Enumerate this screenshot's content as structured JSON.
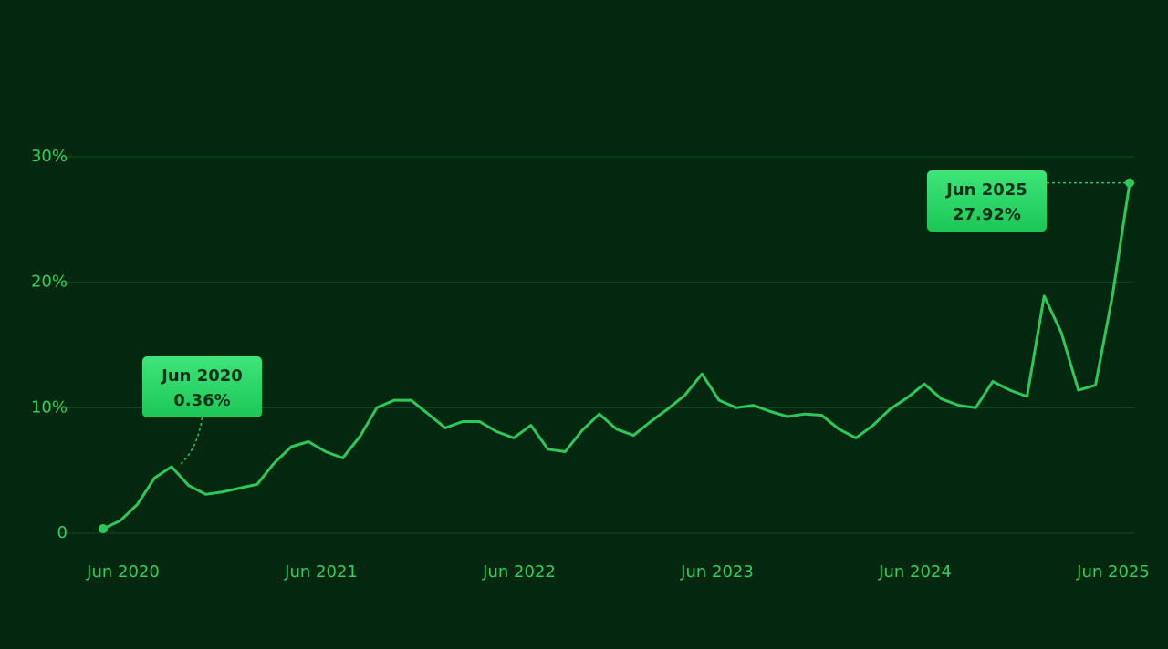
{
  "chart_data": {
    "type": "line",
    "categories": [
      "Jun 2020",
      null,
      null,
      null,
      null,
      null,
      null,
      null,
      null,
      null,
      null,
      null,
      "Jun 2021",
      null,
      null,
      null,
      null,
      null,
      null,
      null,
      null,
      null,
      null,
      null,
      "Jun 2022",
      null,
      null,
      null,
      null,
      null,
      null,
      null,
      null,
      null,
      null,
      null,
      "Jun 2023",
      null,
      null,
      null,
      null,
      null,
      null,
      null,
      null,
      null,
      null,
      null,
      "Jun 2024",
      null,
      null,
      null,
      null,
      null,
      null,
      null,
      null,
      null,
      null,
      null,
      "Jun 2025"
    ],
    "values": [
      0.36,
      1.0,
      2.3,
      4.4,
      5.3,
      3.8,
      3.1,
      3.3,
      3.6,
      3.9,
      5.6,
      6.9,
      7.3,
      6.5,
      6.0,
      7.7,
      10.0,
      10.6,
      10.6,
      9.5,
      8.4,
      8.9,
      8.9,
      8.1,
      7.6,
      8.6,
      6.7,
      6.5,
      8.2,
      9.5,
      8.3,
      7.8,
      8.9,
      9.9,
      11.0,
      12.7,
      10.6,
      10.0,
      10.2,
      9.7,
      9.3,
      9.5,
      9.4,
      8.3,
      7.6,
      8.6,
      9.9,
      10.8,
      11.9,
      10.7,
      10.2,
      10.0,
      12.1,
      11.4,
      10.9,
      18.9,
      16.0,
      11.4,
      11.8,
      19.0,
      27.92
    ],
    "value_labels": [
      "0.36%",
      null,
      null,
      null,
      null,
      null,
      null,
      null,
      null,
      null,
      null,
      null,
      null,
      null,
      null,
      null,
      null,
      null,
      null,
      null,
      null,
      null,
      null,
      null,
      null,
      null,
      null,
      null,
      null,
      null,
      null,
      null,
      null,
      null,
      null,
      null,
      null,
      null,
      null,
      null,
      null,
      null,
      null,
      null,
      null,
      null,
      null,
      null,
      null,
      null,
      null,
      null,
      null,
      null,
      null,
      null,
      null,
      null,
      null,
      null,
      "27.92%"
    ],
    "color": "#2bc95c",
    "ylim": [
      0,
      30
    ],
    "yticks": [
      0,
      {
        "value": 10,
        "label": "10%"
      },
      {
        "value": 20,
        "label": "20%"
      },
      {
        "value": 30,
        "label": "30%"
      }
    ],
    "grid": true
  }
}
